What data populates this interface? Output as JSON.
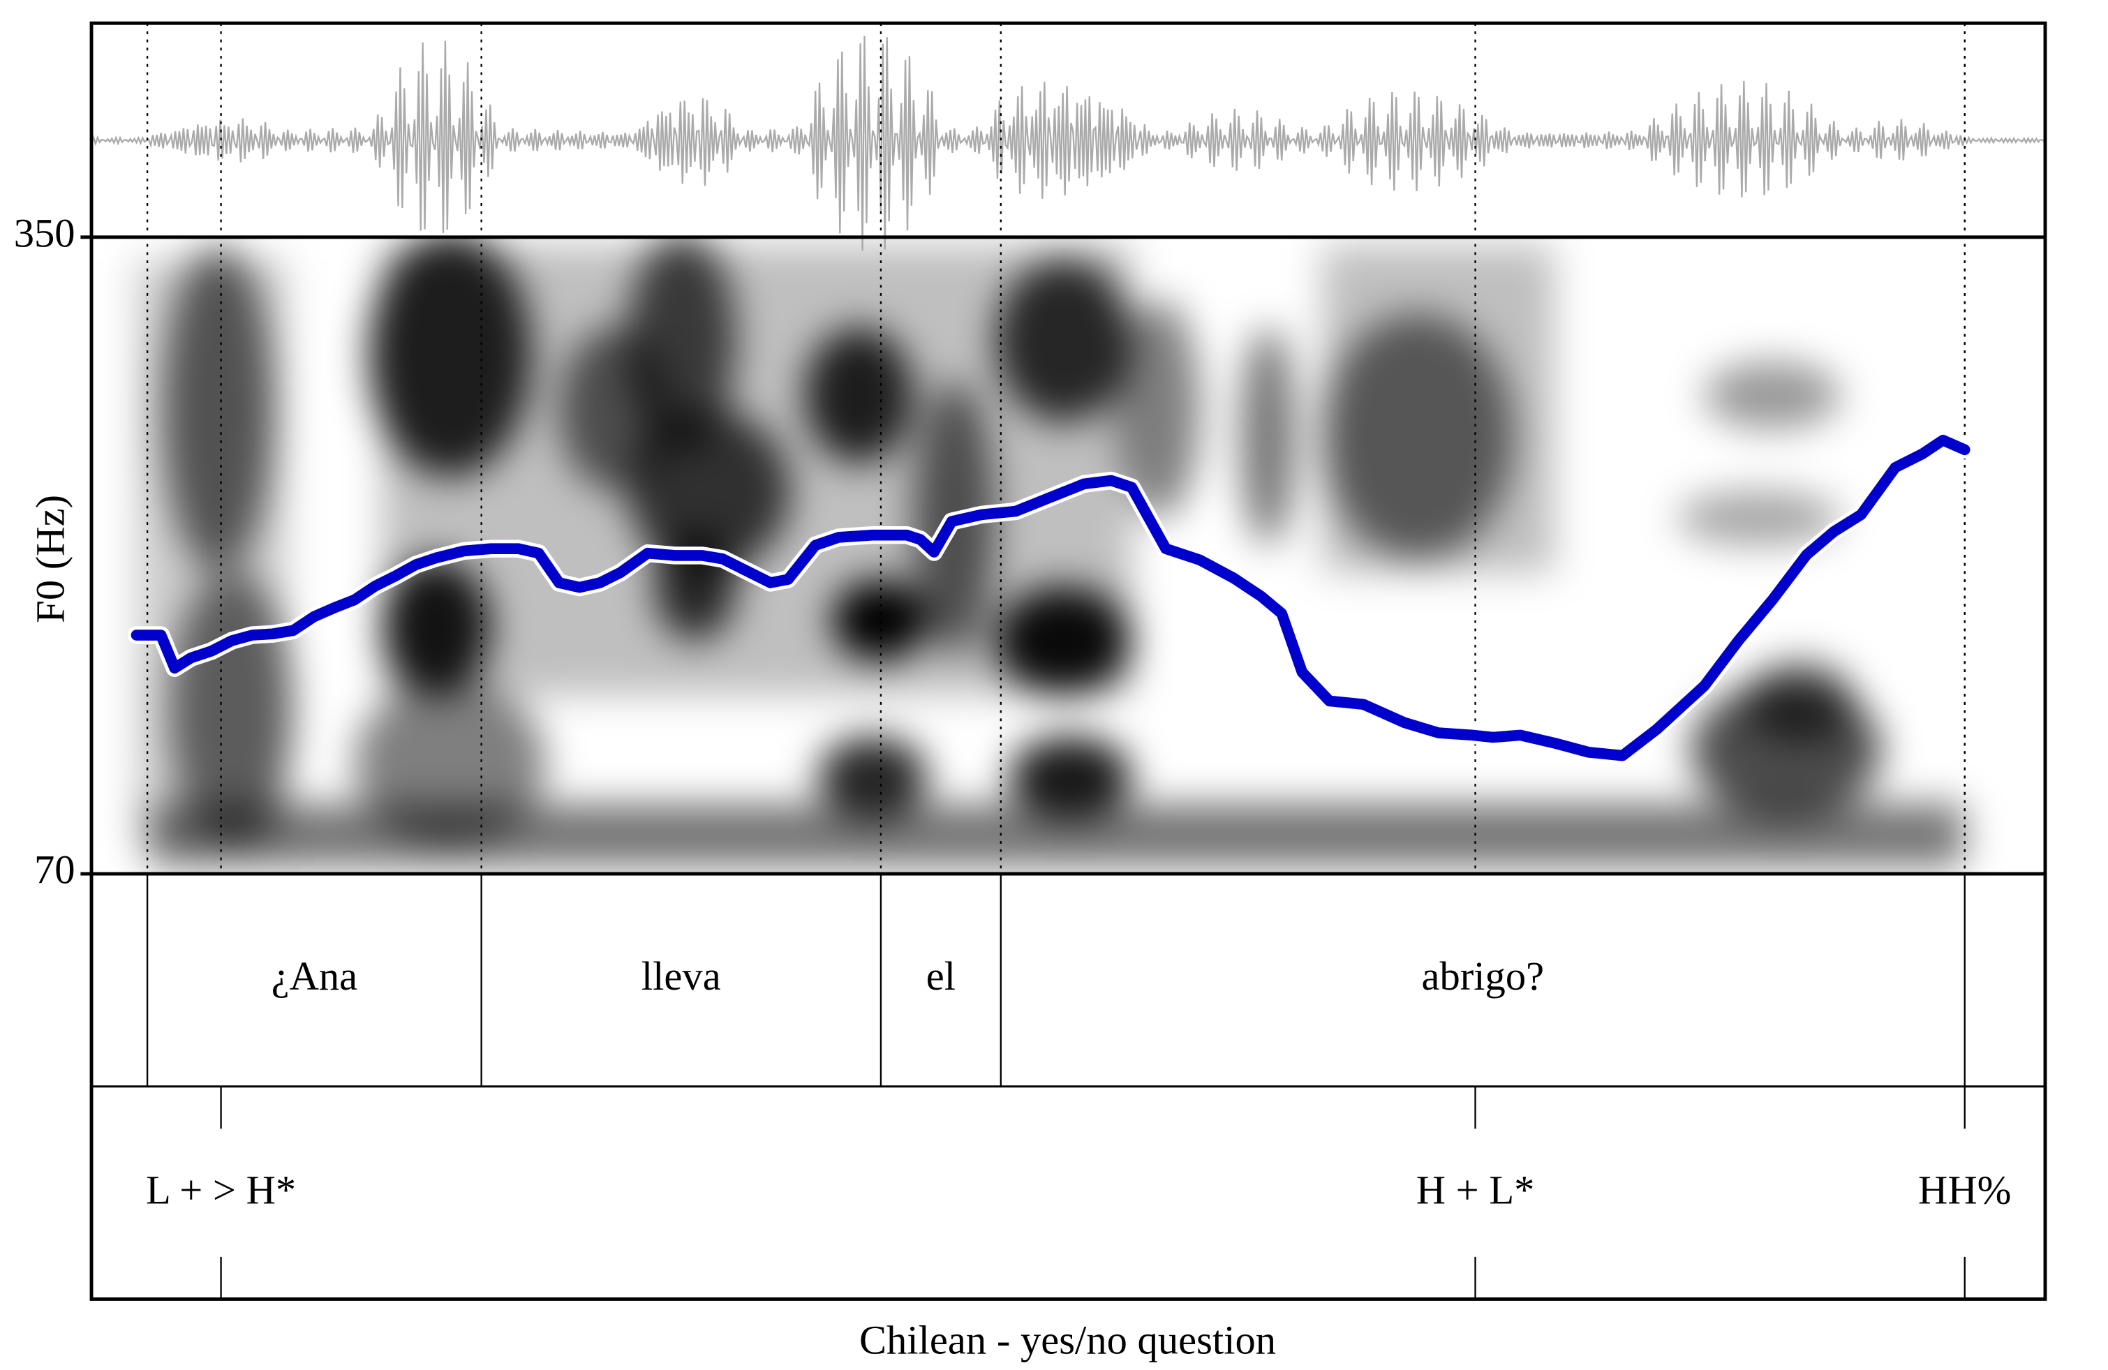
{
  "chart_data": {
    "type": "line",
    "title": "Chilean - yes/no question",
    "y_label": "F0 (Hz)",
    "ylim": [
      70,
      350
    ],
    "yticks": [
      70,
      350
    ],
    "xlim": [
      0,
      1.433
    ],
    "x": [
      0.033,
      0.051,
      0.061,
      0.073,
      0.088,
      0.103,
      0.118,
      0.133,
      0.148,
      0.163,
      0.178,
      0.193,
      0.208,
      0.223,
      0.238,
      0.253,
      0.273,
      0.293,
      0.313,
      0.328,
      0.343,
      0.358,
      0.373,
      0.388,
      0.408,
      0.428,
      0.448,
      0.463,
      0.483,
      0.498,
      0.511,
      0.531,
      0.548,
      0.573,
      0.598,
      0.608,
      0.618,
      0.631,
      0.653,
      0.678,
      0.703,
      0.728,
      0.748,
      0.763,
      0.788,
      0.813,
      0.838,
      0.858,
      0.873,
      0.888,
      0.908,
      0.933,
      0.963,
      0.988,
      1.013,
      1.028,
      1.048,
      1.073,
      1.098,
      1.123,
      1.148,
      1.183,
      1.208,
      1.233,
      1.258,
      1.278,
      1.298,
      1.323,
      1.343,
      1.358,
      1.374
    ],
    "series": [
      {
        "color": "#0000cc",
        "values": [
          175,
          175,
          160.5,
          165,
          168,
          172.5,
          175,
          175.5,
          177,
          183,
          187,
          190.5,
          196.5,
          201,
          206,
          209,
          212,
          213,
          213,
          211,
          198,
          196,
          198,
          202.5,
          211,
          210,
          210,
          208.5,
          202.5,
          198,
          199.5,
          214.5,
          218,
          219,
          219,
          217,
          211.5,
          225,
          228,
          229.5,
          235.5,
          241.5,
          243,
          240,
          213,
          208,
          200,
          192,
          184.5,
          158.7,
          146,
          144.5,
          136.5,
          132,
          131,
          130,
          131,
          127.5,
          123.5,
          122,
          133.5,
          152.7,
          172.5,
          190.5,
          210.3,
          220.5,
          228,
          248.7,
          254.7,
          260.7,
          256.5
        ]
      }
    ],
    "words": {
      "labels": [
        "¿Ana",
        "lleva",
        "el",
        "abrigo?"
      ],
      "boundaries": [
        0.041,
        0.286,
        0.579,
        0.667,
        1.374
      ]
    },
    "tones": {
      "labels": [
        "L + > H*",
        "H + L*",
        "HH%"
      ],
      "x": [
        0.095,
        1.015,
        1.374
      ]
    }
  }
}
